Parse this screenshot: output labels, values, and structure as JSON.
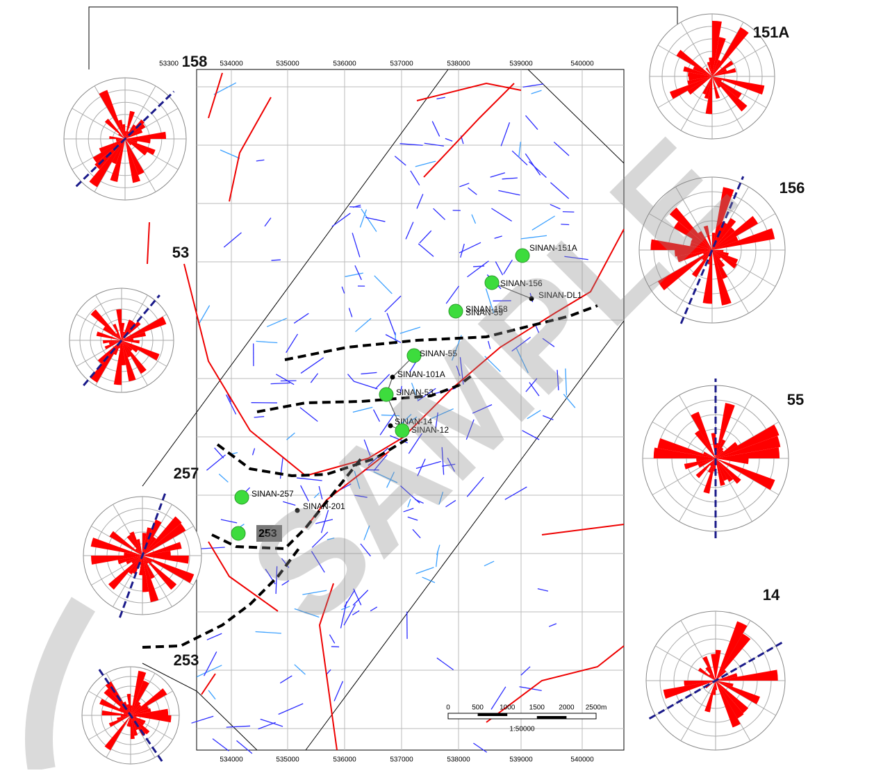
{
  "map": {
    "top_partial_tick": "53300",
    "x_ticks": [
      "534000",
      "535000",
      "536000",
      "537000",
      "538000",
      "539000",
      "540000"
    ],
    "wells": [
      {
        "label": "SINAN-151A"
      },
      {
        "label": "SINAN-156"
      },
      {
        "label": "SINAN-DL1"
      },
      {
        "label": "SINAN-158"
      },
      {
        "label": "SINAN-59"
      },
      {
        "label": "SINAN-55"
      },
      {
        "label": "SINAN-101A"
      },
      {
        "label": "SINAN-53"
      },
      {
        "label": "SINAN-14"
      },
      {
        "label": "SINAN-12"
      },
      {
        "label": "SINAN-257"
      },
      {
        "label": "SINAN-201"
      }
    ],
    "box_label": "253",
    "rose_labels": [
      "158",
      "53",
      "257",
      "253",
      "151A",
      "156",
      "55",
      "14"
    ],
    "scale_bar": {
      "labels": [
        "0",
        "500",
        "1000",
        "1500",
        "2000",
        "2500m"
      ],
      "ratio": "1:50000"
    },
    "watermark": "SAMPLE"
  }
}
